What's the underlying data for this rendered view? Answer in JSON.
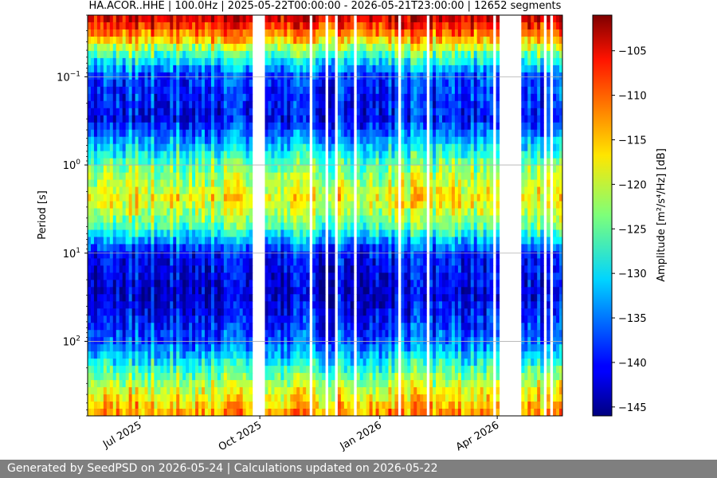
{
  "chart_data": {
    "type": "heatmap",
    "title": "HA.ACOR..HHE | 100.0Hz | 2025-05-22T00:00:00 - 2026-05-21T23:00:00 | 12652 segments",
    "ylabel": "Period [s]",
    "xlabel": "",
    "colorbar_label": "Amplitude [m²/s⁴/Hz] [dB]",
    "colormap": "jet",
    "x_range": [
      "2025-05-22",
      "2026-05-21"
    ],
    "x_ticks": [
      {
        "date": "2025-07-01",
        "label": "Jul 2025"
      },
      {
        "date": "2025-10-01",
        "label": "Oct 2025"
      },
      {
        "date": "2026-01-01",
        "label": "Jan 2026"
      },
      {
        "date": "2026-04-01",
        "label": "Apr 2026"
      }
    ],
    "y_scale": "log",
    "y_inverted": true,
    "y_range": [
      0.02,
      700
    ],
    "y_ticks": [
      {
        "value": 0.1,
        "base": "10",
        "exp": "−1"
      },
      {
        "value": 1,
        "base": "10",
        "exp": "0"
      },
      {
        "value": 10,
        "base": "10",
        "exp": "1"
      },
      {
        "value": 100,
        "base": "10",
        "exp": "2"
      }
    ],
    "color_range": [
      -146,
      -101
    ],
    "color_ticks": [
      -105,
      -110,
      -115,
      -120,
      -125,
      -130,
      -135,
      -140,
      -145
    ],
    "grid": true,
    "data_gaps": [
      [
        "2025-09-26",
        "2025-10-04"
      ],
      [
        "2025-11-08",
        "2025-11-10"
      ],
      [
        "2025-11-14",
        "2025-11-16"
      ],
      [
        "2025-11-20",
        "2025-11-22"
      ],
      [
        "2025-11-27",
        "2025-11-29"
      ],
      [
        "2025-12-13",
        "2025-12-15"
      ],
      [
        "2026-01-15",
        "2026-01-17"
      ],
      [
        "2026-02-05",
        "2026-02-08"
      ],
      [
        "2026-03-28",
        "2026-03-31"
      ],
      [
        "2026-04-02",
        "2026-04-19"
      ],
      [
        "2026-05-07",
        "2026-05-08"
      ],
      [
        "2026-05-12",
        "2026-05-13"
      ]
    ],
    "amplitude_profile": [
      {
        "period": 0.02,
        "db": -103
      },
      {
        "period": 0.035,
        "db": -113
      },
      {
        "period": 0.06,
        "db": -127
      },
      {
        "period": 0.1,
        "db": -137
      },
      {
        "period": 0.3,
        "db": -140
      },
      {
        "period": 1,
        "db": -124
      },
      {
        "period": 2.5,
        "db": -117
      },
      {
        "period": 5,
        "db": -125
      },
      {
        "period": 10,
        "db": -139
      },
      {
        "period": 30,
        "db": -142
      },
      {
        "period": 100,
        "db": -136
      },
      {
        "period": 300,
        "db": -121
      },
      {
        "period": 700,
        "db": -112
      }
    ]
  },
  "footer": {
    "text": "Generated by SeedPSD on 2026-05-24 | Calculations updated on 2026-05-22"
  }
}
